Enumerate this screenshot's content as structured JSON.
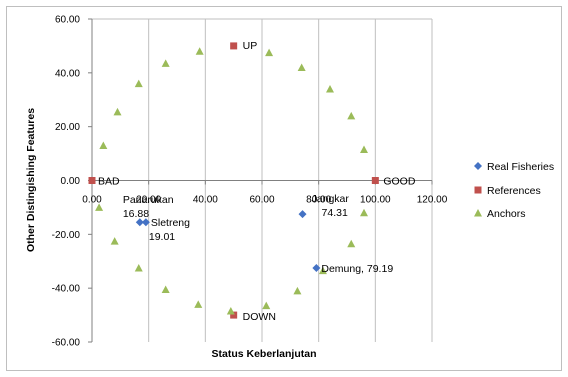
{
  "chart_data": {
    "type": "scatter",
    "title": "",
    "xlabel": "Status Keberlanjutan",
    "ylabel": "Other Distingishing Features",
    "xlim": [
      0,
      120
    ],
    "ylim": [
      -60,
      60
    ],
    "x_ticks": [
      0,
      20,
      40,
      60,
      80,
      100,
      120
    ],
    "y_ticks": [
      -60,
      -40,
      -20,
      0,
      20,
      40,
      60
    ],
    "x_tick_labels": [
      "0.00",
      "20.00",
      "40.00",
      "60.00",
      "80.00",
      "100.00",
      "120.00"
    ],
    "y_tick_labels": [
      "-60.00",
      "-40.00",
      "-20.00",
      "0.00",
      "20.00",
      "40.00",
      "60.00"
    ],
    "grid": "vertical",
    "legend_position": "right",
    "colors": {
      "real_fisheries": "#4472C4",
      "references": "#C0504D",
      "anchors": "#9BBB59",
      "gridline": "#BFBFBF",
      "axis": "#808080",
      "frame": "#BFBFBF"
    },
    "series": [
      {
        "name": "Real Fisheries",
        "marker": "diamond",
        "points": [
          {
            "x": 16.88,
            "y": -15.5,
            "label_lines": [
              "Panarukan",
              "16.88"
            ]
          },
          {
            "x": 19.01,
            "y": -15.5,
            "label_lines": [
              "Sletreng",
              "19.01"
            ]
          },
          {
            "x": 74.31,
            "y": -12.5,
            "label_lines": [
              "Jangkar",
              "74.31"
            ]
          },
          {
            "x": 79.19,
            "y": -32.5,
            "label_lines": [
              "Demung, 79.19"
            ]
          }
        ]
      },
      {
        "name": "References",
        "marker": "square",
        "points": [
          {
            "x": 0,
            "y": 0,
            "label_lines": [
              "BAD"
            ]
          },
          {
            "x": 100,
            "y": 0,
            "label_lines": [
              "GOOD"
            ]
          },
          {
            "x": 50,
            "y": 50,
            "label_lines": [
              "UP"
            ]
          },
          {
            "x": 50,
            "y": -50,
            "label_lines": [
              "DOWN"
            ]
          }
        ]
      },
      {
        "name": "Anchors",
        "marker": "triangle",
        "points": [
          {
            "x": 4,
            "y": 13
          },
          {
            "x": 9,
            "y": 25.5
          },
          {
            "x": 16.5,
            "y": 36
          },
          {
            "x": 26,
            "y": 43.5
          },
          {
            "x": 38,
            "y": 48
          },
          {
            "x": 62.5,
            "y": 47.5
          },
          {
            "x": 74,
            "y": 42
          },
          {
            "x": 84,
            "y": 34
          },
          {
            "x": 91.5,
            "y": 24
          },
          {
            "x": 96,
            "y": 11.5
          },
          {
            "x": 96,
            "y": -12
          },
          {
            "x": 91.5,
            "y": -23.5
          },
          {
            "x": 81.5,
            "y": -33.5
          },
          {
            "x": 72.5,
            "y": -41
          },
          {
            "x": 61.5,
            "y": -46.5
          },
          {
            "x": 49,
            "y": -48.5
          },
          {
            "x": 37.5,
            "y": -46
          },
          {
            "x": 26,
            "y": -40.5
          },
          {
            "x": 16.5,
            "y": -32.5
          },
          {
            "x": 8,
            "y": -22.5
          },
          {
            "x": 2.5,
            "y": -10
          }
        ]
      }
    ]
  }
}
